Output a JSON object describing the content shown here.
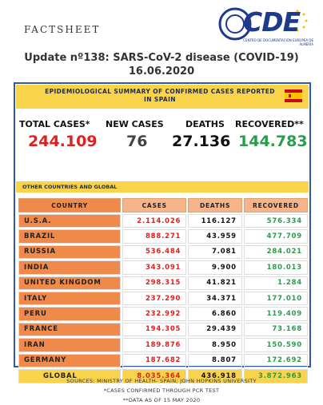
{
  "header": {
    "title": "FACTSHEET",
    "logo_text": "CDE",
    "logo_subtitle": "CENTRO DE DOCUMENTACIÓN EUROPEA DE ALMERÍA"
  },
  "title": {
    "line1": "Update nº138: SARS-CoV-2 disease (COVID-19)",
    "date": "16.06.2020"
  },
  "summary": {
    "heading": "EPIDEMIOLOGICAL SUMMARY OF CONFIRMED CASES REPORTED IN SPAIN",
    "stats": [
      {
        "label": "TOTAL CASES*",
        "value": "244.109"
      },
      {
        "label": "NEW CASES",
        "value": "76"
      },
      {
        "label": "DEATHS",
        "value": "27.136"
      },
      {
        "label": "RECOVERED**",
        "value": "144.783"
      }
    ]
  },
  "other": {
    "heading": "OTHER COUNTRIES AND GLOBAL"
  },
  "table": {
    "columns": [
      "COUNTRY",
      "CASES",
      "DEATHS",
      "RECOVERED"
    ],
    "rows": [
      [
        "U.S.A.",
        "2.114.026",
        "116.127",
        "576.334"
      ],
      [
        "BRAZIL",
        "888.271",
        "43.959",
        "477.709"
      ],
      [
        "RUSSIA",
        "536.484",
        "7.081",
        "284.021"
      ],
      [
        "INDIA",
        "343.091",
        "9.900",
        "180.013"
      ],
      [
        "UNITED KINGDOM",
        "298.315",
        "41.821",
        "1.284"
      ],
      [
        "ITALY",
        "237.290",
        "34.371",
        "177.010"
      ],
      [
        "PERU",
        "232.992",
        "6.860",
        "119.409"
      ],
      [
        "FRANCE",
        "194.305",
        "29.439",
        "73.168"
      ],
      [
        "IRAN",
        "189.876",
        "8.950",
        "150.590"
      ],
      [
        "GERMANY",
        "187.682",
        "8.807",
        "172.692"
      ]
    ],
    "global": [
      "GLOBAL",
      "8.035.364",
      "436.918",
      "3.872.963"
    ]
  },
  "footer": [
    "SOURCES: MINISTRY OF HEALTH- SPAIN; JOHN HOPKINS UNIVERSITY",
    "*CASES CONFIRMED THROUGH PCR TEST",
    "**DATA AS OF 15 MAY 2020"
  ]
}
